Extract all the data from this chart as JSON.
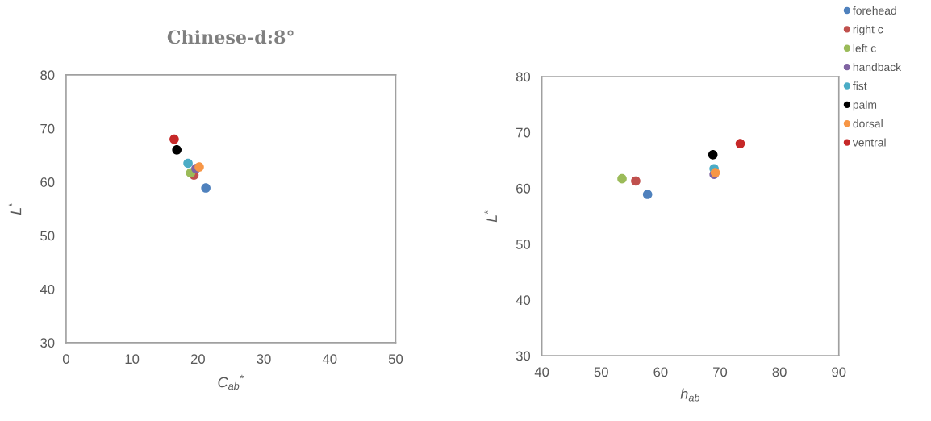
{
  "chart_data": [
    {
      "type": "scatter",
      "title": "Chinese-d:8°",
      "xlabel": "C$_{ab}$$^{*}$",
      "ylabel": "L$^{*}$",
      "xlim": [
        0,
        50
      ],
      "xticks": [
        0,
        10,
        20,
        30,
        40,
        50
      ],
      "ylim": [
        30,
        80
      ],
      "yticks": [
        30,
        40,
        50,
        60,
        70,
        80
      ],
      "grid": false,
      "marker": "circle",
      "series": [
        {
          "color": "#4f81bd",
          "x": [
            21.2
          ],
          "values": [
            58.9
          ]
        },
        {
          "color": "#c0504d",
          "x": [
            19.4
          ],
          "values": [
            61.3
          ]
        },
        {
          "color": "#9bbb59",
          "x": [
            18.9
          ],
          "values": [
            61.7
          ]
        },
        {
          "color": "#8064a2",
          "x": [
            19.7
          ],
          "values": [
            62.5
          ]
        },
        {
          "color": "#4bacc6",
          "x": [
            18.5
          ],
          "values": [
            63.5
          ]
        },
        {
          "color": "#000000",
          "x": [
            16.8
          ],
          "values": [
            66.0
          ]
        },
        {
          "color": "#f79646",
          "x": [
            20.2
          ],
          "values": [
            62.8
          ]
        },
        {
          "color": "#c62828",
          "x": [
            16.4
          ],
          "values": [
            68.0
          ]
        }
      ]
    },
    {
      "type": "scatter",
      "xlabel": "h$_{ab}$",
      "ylabel": "L$^{*}$",
      "xlim": [
        40,
        90
      ],
      "xticks": [
        40,
        50,
        60,
        70,
        80,
        90
      ],
      "ylim": [
        30,
        80
      ],
      "yticks": [
        30,
        40,
        50,
        60,
        70,
        80
      ],
      "grid": false,
      "marker": "circle",
      "legend": "top right",
      "series": [
        {
          "name": "forehead",
          "color": "#4f81bd",
          "x": [
            57.8
          ],
          "values": [
            58.9
          ]
        },
        {
          "name": "right c",
          "color": "#c0504d",
          "x": [
            55.8
          ],
          "values": [
            61.3
          ]
        },
        {
          "name": "left c",
          "color": "#9bbb59",
          "x": [
            53.5
          ],
          "values": [
            61.7
          ]
        },
        {
          "name": "handback",
          "color": "#8064a2",
          "x": [
            69.0
          ],
          "values": [
            62.5
          ]
        },
        {
          "name": "fist",
          "color": "#4bacc6",
          "x": [
            69.0
          ],
          "values": [
            63.5
          ]
        },
        {
          "name": "palm",
          "color": "#000000",
          "x": [
            68.8
          ],
          "values": [
            66.0
          ]
        },
        {
          "name": "dorsal",
          "color": "#f79646",
          "x": [
            69.2
          ],
          "values": [
            62.8
          ]
        },
        {
          "name": "ventral",
          "color": "#c62828",
          "x": [
            73.4
          ],
          "values": [
            68.0
          ]
        }
      ]
    }
  ]
}
